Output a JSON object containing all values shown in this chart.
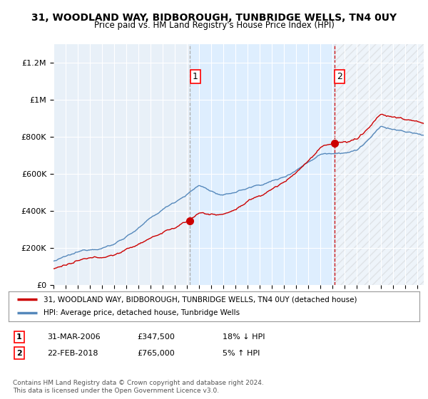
{
  "title": "31, WOODLAND WAY, BIDBOROUGH, TUNBRIDGE WELLS, TN4 0UY",
  "subtitle": "Price paid vs. HM Land Registry's House Price Index (HPI)",
  "ylabel_ticks": [
    "£0",
    "£200K",
    "£400K",
    "£600K",
    "£800K",
    "£1M",
    "£1.2M"
  ],
  "ytick_values": [
    0,
    200000,
    400000,
    600000,
    800000,
    1000000,
    1200000
  ],
  "ylim": [
    0,
    1300000
  ],
  "xlim_start": 1995.0,
  "xlim_end": 2025.5,
  "sale1_x": 2006.25,
  "sale1_y": 347500,
  "sale1_label": "1",
  "sale2_x": 2018.15,
  "sale2_y": 765000,
  "sale2_label": "2",
  "property_color": "#cc0000",
  "hpi_color": "#5588bb",
  "shade_color": "#ddeeff",
  "hatch_color": "#cccccc",
  "legend_property": "31, WOODLAND WAY, BIDBOROUGH, TUNBRIDGE WELLS, TN4 0UY (detached house)",
  "legend_hpi": "HPI: Average price, detached house, Tunbridge Wells",
  "table_rows": [
    {
      "num": "1",
      "date": "31-MAR-2006",
      "price": "£347,500",
      "change": "18% ↓ HPI"
    },
    {
      "num": "2",
      "date": "22-FEB-2018",
      "price": "£765,000",
      "change": "5% ↑ HPI"
    }
  ],
  "footer": "Contains HM Land Registry data © Crown copyright and database right 2024.\nThis data is licensed under the Open Government Licence v3.0.",
  "plot_bg_color": "#e8f0f8",
  "grid_color": "#ffffff"
}
